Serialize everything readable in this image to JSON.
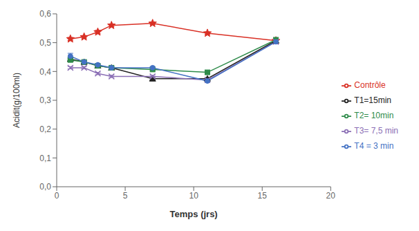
{
  "chart_data": {
    "type": "line",
    "xlabel": "Temps (jrs)",
    "ylabel": "Acidit(g/100ml)",
    "xlim": [
      0,
      20
    ],
    "xticks": [
      0,
      5,
      10,
      15,
      20
    ],
    "ylim": [
      0,
      0.6
    ],
    "yticks": [
      {
        "value": 0,
        "label": "0,0"
      },
      {
        "value": 0.1,
        "label": "0,1"
      },
      {
        "value": 0.2,
        "label": "0,2"
      },
      {
        "value": 0.3,
        "label": "0,3"
      },
      {
        "value": 0.4,
        "label": "0,4"
      },
      {
        "value": 0.5,
        "label": "0,5"
      },
      {
        "value": 0.6,
        "label": "0,6"
      }
    ],
    "grid": false,
    "legend": "right",
    "x": [
      1,
      2,
      3,
      4,
      7,
      11,
      16
    ],
    "series": [
      {
        "name": "Contrôle",
        "color": "#d93025",
        "marker": "star",
        "line_style": "solid",
        "values": [
          0.513,
          0.52,
          0.537,
          0.56,
          0.567,
          0.533,
          0.507
        ],
        "yerr": [
          0.005,
          0.004,
          0.006,
          0.004,
          0.004,
          0.004,
          0.004
        ]
      },
      {
        "name": "T1=15min",
        "color": "#222222",
        "marker": "triangle",
        "line_style": "solid",
        "values": [
          0.443,
          0.433,
          0.42,
          0.413,
          0.375,
          0.375,
          0.507
        ],
        "yerr": [
          0.006,
          0.004,
          0.004,
          0.004,
          0.004,
          0.004,
          0.004
        ]
      },
      {
        "name": "T2= 10min",
        "color": "#2e8b4a",
        "marker": "square",
        "line_style": "solid",
        "values": [
          0.44,
          0.433,
          0.42,
          0.413,
          0.407,
          0.397,
          0.51
        ],
        "yerr": [
          0.004,
          0.004,
          0.004,
          0.004,
          0.004,
          0.004,
          0.004
        ]
      },
      {
        "name": "T3= 7,5 min",
        "color": "#8b6fb5",
        "marker": "x",
        "line_style": "solid",
        "values": [
          0.413,
          0.413,
          0.393,
          0.383,
          0.383,
          0.37,
          0.503
        ],
        "yerr": [
          0.004,
          0.004,
          0.004,
          0.004,
          0.004,
          0.004,
          0.004
        ]
      },
      {
        "name": "T4 = 3 min",
        "color": "#4472c4",
        "marker": "circle",
        "line_style": "solid",
        "values": [
          0.453,
          0.433,
          0.423,
          0.413,
          0.413,
          0.367,
          0.503
        ],
        "yerr": [
          0.01,
          0.004,
          0.004,
          0.004,
          0.004,
          0.004,
          0.004
        ]
      }
    ]
  }
}
